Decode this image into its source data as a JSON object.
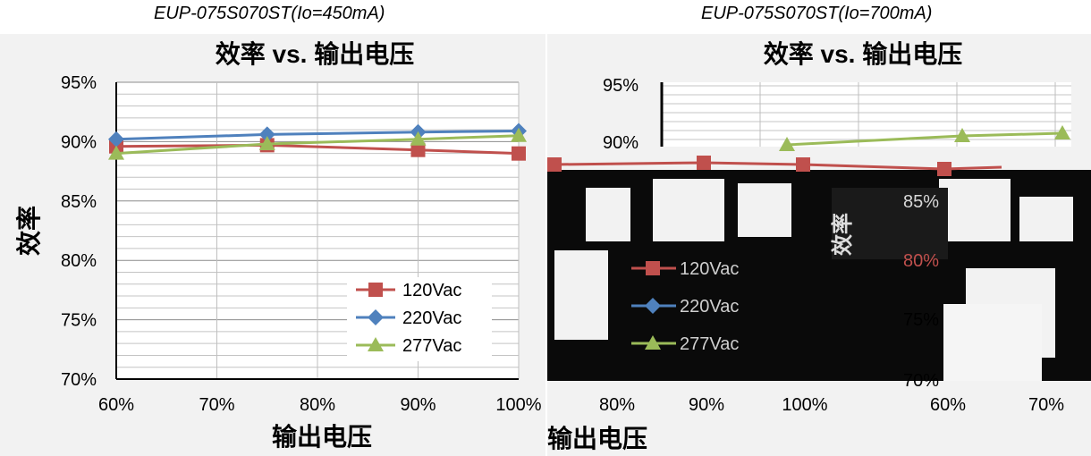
{
  "captions": [
    "EUP-075S070ST(Io=450mA)",
    "EUP-075S070ST(Io=700mA)"
  ],
  "chart_data": [
    {
      "type": "line",
      "title": "效率 vs. 输出电压",
      "xlabel": "输出电压",
      "ylabel": "效率",
      "x": [
        0.6,
        0.75,
        0.9,
        1.0
      ],
      "xlim": [
        0.6,
        1.0
      ],
      "ylim": [
        0.7,
        0.95
      ],
      "x_ticks": [
        "60%",
        "70%",
        "80%",
        "90%",
        "100%"
      ],
      "y_ticks": [
        "70%",
        "75%",
        "80%",
        "85%",
        "90%",
        "95%"
      ],
      "grid": true,
      "legend_position": "bottom-right",
      "series": [
        {
          "name": "120Vac",
          "color": "#c0504d",
          "marker": "square",
          "values": [
            0.896,
            0.897,
            0.893,
            0.89
          ]
        },
        {
          "name": "220Vac",
          "color": "#4f81bd",
          "marker": "diamond",
          "values": [
            0.902,
            0.906,
            0.908,
            0.909
          ]
        },
        {
          "name": "277Vac",
          "color": "#9bbb59",
          "marker": "triangle",
          "values": [
            0.89,
            0.898,
            0.902,
            0.905
          ]
        }
      ]
    },
    {
      "type": "line",
      "title": "效率 vs. 输出电压",
      "xlabel": "输出电压",
      "ylabel": "效率",
      "x_ticks_bottom": [
        "80%",
        "90%",
        "100%",
        "60%",
        "70%"
      ],
      "y_ticks_top": [
        "95%",
        "90%"
      ],
      "y_ticks_inset": [
        "85%",
        "80%",
        "75%",
        "70%"
      ],
      "legend": [
        "120Vac",
        "220Vac",
        "277Vac"
      ],
      "series": [
        {
          "name": "120Vac",
          "color": "#c0504d",
          "marker": "square",
          "values": [
            0.881,
            0.882,
            0.881,
            0.878,
            0.879
          ]
        },
        {
          "name": "277Vac",
          "color": "#9bbb59",
          "marker": "triangle",
          "values": [
            0.898,
            0.905,
            0.907
          ]
        }
      ]
    }
  ]
}
